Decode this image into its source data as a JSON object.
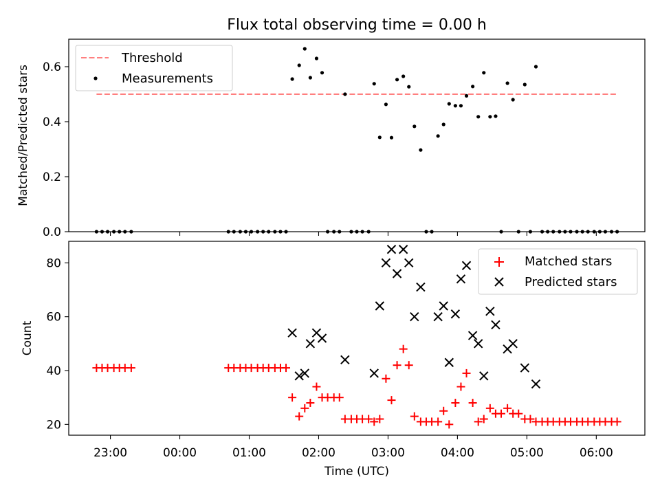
{
  "chart_data": [
    {
      "type": "scatter",
      "title": "Flux total observing time = 0.00 h",
      "xlabel": "",
      "ylabel": "Matched/Predicted stars",
      "xlim": [
        -1.6,
        6.7
      ],
      "ylim": [
        0,
        0.7
      ],
      "yticks": [
        0.0,
        0.2,
        0.4,
        0.6
      ],
      "ytick_labels": [
        "0.0",
        "0.2",
        "0.4",
        "0.6"
      ],
      "legend_position": "upper left",
      "threshold": {
        "name": "Threshold",
        "value": 0.5,
        "x_range": [
          -1.2,
          6.3
        ],
        "color": "#ff7f7f"
      },
      "series": [
        {
          "name": "Measurements",
          "color": "#000000",
          "points": [
            [
              -1.2,
              0
            ],
            [
              -1.12,
              0
            ],
            [
              -1.04,
              0
            ],
            [
              -0.95,
              0
            ],
            [
              -0.87,
              0
            ],
            [
              -0.79,
              0
            ],
            [
              -0.7,
              0
            ],
            [
              0.7,
              0
            ],
            [
              0.78,
              0
            ],
            [
              0.87,
              0
            ],
            [
              0.95,
              0
            ],
            [
              1.03,
              0
            ],
            [
              1.12,
              0
            ],
            [
              1.2,
              0
            ],
            [
              1.28,
              0
            ],
            [
              1.37,
              0
            ],
            [
              1.45,
              0
            ],
            [
              1.53,
              0
            ],
            [
              1.62,
              0.555
            ],
            [
              1.72,
              0.605
            ],
            [
              1.8,
              0.665
            ],
            [
              1.88,
              0.56
            ],
            [
              1.97,
              0.63
            ],
            [
              2.05,
              0.578
            ],
            [
              2.13,
              0
            ],
            [
              2.22,
              0
            ],
            [
              2.3,
              0
            ],
            [
              2.38,
              0.5
            ],
            [
              2.47,
              0
            ],
            [
              2.55,
              0
            ],
            [
              2.63,
              0
            ],
            [
              2.72,
              0
            ],
            [
              2.8,
              0.538
            ],
            [
              2.88,
              0.343
            ],
            [
              2.97,
              0.463
            ],
            [
              3.05,
              0.342
            ],
            [
              3.13,
              0.553
            ],
            [
              3.22,
              0.565
            ],
            [
              3.3,
              0.527
            ],
            [
              3.38,
              0.383
            ],
            [
              3.47,
              0.297
            ],
            [
              3.55,
              0
            ],
            [
              3.63,
              0
            ],
            [
              3.72,
              0.348
            ],
            [
              3.8,
              0.39
            ],
            [
              3.88,
              0.465
            ],
            [
              3.97,
              0.458
            ],
            [
              4.05,
              0.458
            ],
            [
              4.13,
              0.494
            ],
            [
              4.22,
              0.528
            ],
            [
              4.3,
              0.418
            ],
            [
              4.38,
              0.578
            ],
            [
              4.47,
              0.418
            ],
            [
              4.55,
              0.42
            ],
            [
              4.63,
              0
            ],
            [
              4.72,
              0.54
            ],
            [
              4.8,
              0.48
            ],
            [
              4.88,
              0
            ],
            [
              4.97,
              0.535
            ],
            [
              5.05,
              0
            ],
            [
              5.13,
              0.6
            ],
            [
              5.22,
              0
            ],
            [
              5.3,
              0
            ],
            [
              5.38,
              0
            ],
            [
              5.47,
              0
            ],
            [
              5.55,
              0
            ],
            [
              5.63,
              0
            ],
            [
              5.72,
              0
            ],
            [
              5.8,
              0
            ],
            [
              5.88,
              0
            ],
            [
              5.97,
              0
            ],
            [
              6.05,
              0
            ],
            [
              6.13,
              0
            ],
            [
              6.22,
              0
            ],
            [
              6.3,
              0
            ]
          ]
        }
      ]
    },
    {
      "type": "scatter",
      "title": "",
      "xlabel": "Time (UTC)",
      "ylabel": "Count",
      "xlim": [
        -1.6,
        6.7
      ],
      "ylim": [
        16,
        88
      ],
      "yticks": [
        20,
        40,
        60,
        80
      ],
      "ytick_labels": [
        "20",
        "40",
        "60",
        "80"
      ],
      "xticks": [
        -1,
        0,
        1,
        2,
        3,
        4,
        5,
        6
      ],
      "xtick_labels": [
        "23:00",
        "00:00",
        "01:00",
        "02:00",
        "03:00",
        "04:00",
        "05:00",
        "06:00"
      ],
      "legend_position": "upper right",
      "series": [
        {
          "name": "Matched stars",
          "marker": "plus",
          "color": "#ff0000",
          "points": [
            [
              -1.2,
              41
            ],
            [
              -1.12,
              41
            ],
            [
              -1.04,
              41
            ],
            [
              -0.95,
              41
            ],
            [
              -0.87,
              41
            ],
            [
              -0.79,
              41
            ],
            [
              -0.7,
              41
            ],
            [
              0.7,
              41
            ],
            [
              0.78,
              41
            ],
            [
              0.87,
              41
            ],
            [
              0.95,
              41
            ],
            [
              1.03,
              41
            ],
            [
              1.12,
              41
            ],
            [
              1.2,
              41
            ],
            [
              1.28,
              41
            ],
            [
              1.37,
              41
            ],
            [
              1.45,
              41
            ],
            [
              1.53,
              41
            ],
            [
              1.62,
              30
            ],
            [
              1.72,
              23
            ],
            [
              1.8,
              26
            ],
            [
              1.88,
              28
            ],
            [
              1.97,
              34
            ],
            [
              2.05,
              30
            ],
            [
              2.13,
              30
            ],
            [
              2.22,
              30
            ],
            [
              2.3,
              30
            ],
            [
              2.38,
              22
            ],
            [
              2.47,
              22
            ],
            [
              2.55,
              22
            ],
            [
              2.63,
              22
            ],
            [
              2.72,
              22
            ],
            [
              2.8,
              21
            ],
            [
              2.88,
              22
            ],
            [
              2.97,
              37
            ],
            [
              3.05,
              29
            ],
            [
              3.13,
              42
            ],
            [
              3.22,
              48
            ],
            [
              3.3,
              42
            ],
            [
              3.38,
              23
            ],
            [
              3.47,
              21
            ],
            [
              3.55,
              21
            ],
            [
              3.63,
              21
            ],
            [
              3.72,
              21
            ],
            [
              3.8,
              25
            ],
            [
              3.88,
              20
            ],
            [
              3.97,
              28
            ],
            [
              4.05,
              34
            ],
            [
              4.13,
              39
            ],
            [
              4.22,
              28
            ],
            [
              4.3,
              21
            ],
            [
              4.38,
              22
            ],
            [
              4.47,
              26
            ],
            [
              4.55,
              24
            ],
            [
              4.63,
              24
            ],
            [
              4.72,
              26
            ],
            [
              4.8,
              24
            ],
            [
              4.88,
              24
            ],
            [
              4.97,
              22
            ],
            [
              5.05,
              22
            ],
            [
              5.13,
              21
            ],
            [
              5.22,
              21
            ],
            [
              5.3,
              21
            ],
            [
              5.38,
              21
            ],
            [
              5.47,
              21
            ],
            [
              5.55,
              21
            ],
            [
              5.63,
              21
            ],
            [
              5.72,
              21
            ],
            [
              5.8,
              21
            ],
            [
              5.88,
              21
            ],
            [
              5.97,
              21
            ],
            [
              6.05,
              21
            ],
            [
              6.13,
              21
            ],
            [
              6.22,
              21
            ],
            [
              6.3,
              21
            ]
          ]
        },
        {
          "name": "Predicted stars",
          "marker": "x",
          "color": "#000000",
          "points": [
            [
              1.62,
              54
            ],
            [
              1.72,
              38
            ],
            [
              1.8,
              39
            ],
            [
              1.88,
              50
            ],
            [
              1.97,
              54
            ],
            [
              2.05,
              52
            ],
            [
              2.38,
              44
            ],
            [
              2.8,
              39
            ],
            [
              2.88,
              64
            ],
            [
              2.97,
              80
            ],
            [
              3.05,
              85
            ],
            [
              3.13,
              76
            ],
            [
              3.22,
              85
            ],
            [
              3.3,
              80
            ],
            [
              3.38,
              60
            ],
            [
              3.47,
              71
            ],
            [
              3.72,
              60
            ],
            [
              3.8,
              64
            ],
            [
              3.88,
              43
            ],
            [
              3.97,
              61
            ],
            [
              4.05,
              74
            ],
            [
              4.13,
              79
            ],
            [
              4.22,
              53
            ],
            [
              4.3,
              50
            ],
            [
              4.38,
              38
            ],
            [
              4.47,
              62
            ],
            [
              4.55,
              57
            ],
            [
              4.72,
              48
            ],
            [
              4.8,
              50
            ],
            [
              4.97,
              41
            ],
            [
              5.13,
              35
            ]
          ]
        }
      ]
    }
  ]
}
